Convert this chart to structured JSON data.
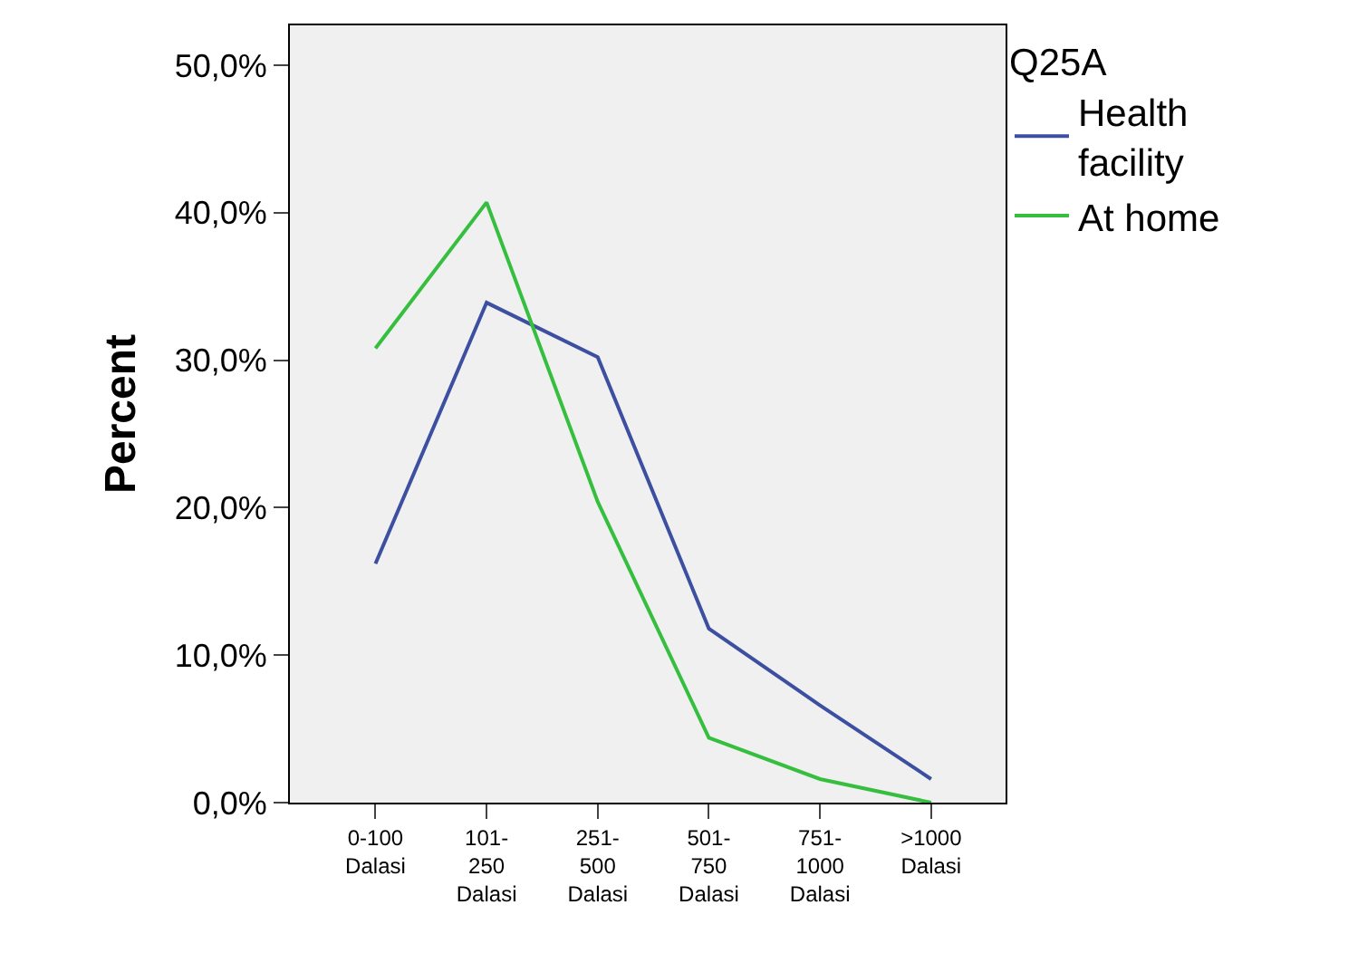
{
  "chart_data": {
    "type": "line",
    "ylabel": "Percent",
    "legend_title": "Q25A",
    "legend": "top right",
    "grid": false,
    "marker": "none",
    "line_style": "solid",
    "categories": [
      "0-100\nDalasi",
      "101-\n250\nDalasi",
      "251-\n500\nDalasi",
      "501-\n750\nDalasi",
      "751-\n1000\nDalasi",
      ">1000\nDalasi"
    ],
    "ylim": [
      0,
      52.7
    ],
    "yticks": [
      {
        "value": 0,
        "label": "0,0%"
      },
      {
        "value": 10,
        "label": "10,0%"
      },
      {
        "value": 20,
        "label": "20,0%"
      },
      {
        "value": 30,
        "label": "30,0%"
      },
      {
        "value": 40,
        "label": "40,0%"
      },
      {
        "value": 50,
        "label": "50,0%"
      }
    ],
    "series": [
      {
        "name": "Health\nfacility",
        "color": "#3d4fa1",
        "values": [
          16.2,
          33.9,
          30.2,
          11.8,
          6.6,
          1.6
        ]
      },
      {
        "name": "At home",
        "color": "#36bf3f",
        "values": [
          30.8,
          40.7,
          20.4,
          4.4,
          1.6,
          0.0
        ]
      }
    ]
  }
}
